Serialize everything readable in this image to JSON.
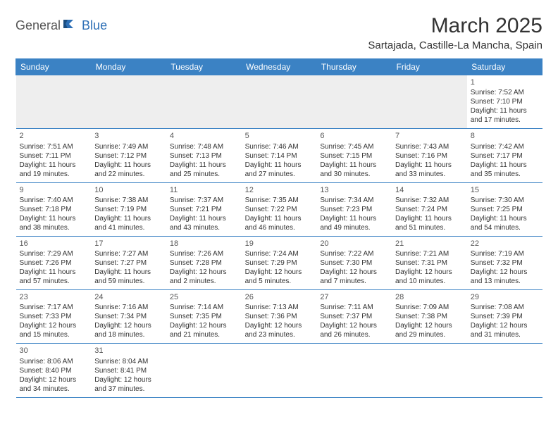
{
  "logo": {
    "part1": "General",
    "part2": "Blue"
  },
  "title": "March 2025",
  "location": "Sartajada, Castille-La Mancha, Spain",
  "colors": {
    "header_bg": "#3b82c4",
    "header_text": "#ffffff",
    "border": "#3b82c4",
    "lead_bg": "#eeeeee",
    "text": "#333333",
    "logo_blue": "#2d6fb6"
  },
  "weekdays": [
    "Sunday",
    "Monday",
    "Tuesday",
    "Wednesday",
    "Thursday",
    "Friday",
    "Saturday"
  ],
  "weeks": [
    [
      {
        "blank": true
      },
      {
        "blank": true
      },
      {
        "blank": true
      },
      {
        "blank": true
      },
      {
        "blank": true
      },
      {
        "blank": true
      },
      {
        "day": "1",
        "sunrise": "Sunrise: 7:52 AM",
        "sunset": "Sunset: 7:10 PM",
        "daylight1": "Daylight: 11 hours",
        "daylight2": "and 17 minutes."
      }
    ],
    [
      {
        "day": "2",
        "sunrise": "Sunrise: 7:51 AM",
        "sunset": "Sunset: 7:11 PM",
        "daylight1": "Daylight: 11 hours",
        "daylight2": "and 19 minutes."
      },
      {
        "day": "3",
        "sunrise": "Sunrise: 7:49 AM",
        "sunset": "Sunset: 7:12 PM",
        "daylight1": "Daylight: 11 hours",
        "daylight2": "and 22 minutes."
      },
      {
        "day": "4",
        "sunrise": "Sunrise: 7:48 AM",
        "sunset": "Sunset: 7:13 PM",
        "daylight1": "Daylight: 11 hours",
        "daylight2": "and 25 minutes."
      },
      {
        "day": "5",
        "sunrise": "Sunrise: 7:46 AM",
        "sunset": "Sunset: 7:14 PM",
        "daylight1": "Daylight: 11 hours",
        "daylight2": "and 27 minutes."
      },
      {
        "day": "6",
        "sunrise": "Sunrise: 7:45 AM",
        "sunset": "Sunset: 7:15 PM",
        "daylight1": "Daylight: 11 hours",
        "daylight2": "and 30 minutes."
      },
      {
        "day": "7",
        "sunrise": "Sunrise: 7:43 AM",
        "sunset": "Sunset: 7:16 PM",
        "daylight1": "Daylight: 11 hours",
        "daylight2": "and 33 minutes."
      },
      {
        "day": "8",
        "sunrise": "Sunrise: 7:42 AM",
        "sunset": "Sunset: 7:17 PM",
        "daylight1": "Daylight: 11 hours",
        "daylight2": "and 35 minutes."
      }
    ],
    [
      {
        "day": "9",
        "sunrise": "Sunrise: 7:40 AM",
        "sunset": "Sunset: 7:18 PM",
        "daylight1": "Daylight: 11 hours",
        "daylight2": "and 38 minutes."
      },
      {
        "day": "10",
        "sunrise": "Sunrise: 7:38 AM",
        "sunset": "Sunset: 7:19 PM",
        "daylight1": "Daylight: 11 hours",
        "daylight2": "and 41 minutes."
      },
      {
        "day": "11",
        "sunrise": "Sunrise: 7:37 AM",
        "sunset": "Sunset: 7:21 PM",
        "daylight1": "Daylight: 11 hours",
        "daylight2": "and 43 minutes."
      },
      {
        "day": "12",
        "sunrise": "Sunrise: 7:35 AM",
        "sunset": "Sunset: 7:22 PM",
        "daylight1": "Daylight: 11 hours",
        "daylight2": "and 46 minutes."
      },
      {
        "day": "13",
        "sunrise": "Sunrise: 7:34 AM",
        "sunset": "Sunset: 7:23 PM",
        "daylight1": "Daylight: 11 hours",
        "daylight2": "and 49 minutes."
      },
      {
        "day": "14",
        "sunrise": "Sunrise: 7:32 AM",
        "sunset": "Sunset: 7:24 PM",
        "daylight1": "Daylight: 11 hours",
        "daylight2": "and 51 minutes."
      },
      {
        "day": "15",
        "sunrise": "Sunrise: 7:30 AM",
        "sunset": "Sunset: 7:25 PM",
        "daylight1": "Daylight: 11 hours",
        "daylight2": "and 54 minutes."
      }
    ],
    [
      {
        "day": "16",
        "sunrise": "Sunrise: 7:29 AM",
        "sunset": "Sunset: 7:26 PM",
        "daylight1": "Daylight: 11 hours",
        "daylight2": "and 57 minutes."
      },
      {
        "day": "17",
        "sunrise": "Sunrise: 7:27 AM",
        "sunset": "Sunset: 7:27 PM",
        "daylight1": "Daylight: 11 hours",
        "daylight2": "and 59 minutes."
      },
      {
        "day": "18",
        "sunrise": "Sunrise: 7:26 AM",
        "sunset": "Sunset: 7:28 PM",
        "daylight1": "Daylight: 12 hours",
        "daylight2": "and 2 minutes."
      },
      {
        "day": "19",
        "sunrise": "Sunrise: 7:24 AM",
        "sunset": "Sunset: 7:29 PM",
        "daylight1": "Daylight: 12 hours",
        "daylight2": "and 5 minutes."
      },
      {
        "day": "20",
        "sunrise": "Sunrise: 7:22 AM",
        "sunset": "Sunset: 7:30 PM",
        "daylight1": "Daylight: 12 hours",
        "daylight2": "and 7 minutes."
      },
      {
        "day": "21",
        "sunrise": "Sunrise: 7:21 AM",
        "sunset": "Sunset: 7:31 PM",
        "daylight1": "Daylight: 12 hours",
        "daylight2": "and 10 minutes."
      },
      {
        "day": "22",
        "sunrise": "Sunrise: 7:19 AM",
        "sunset": "Sunset: 7:32 PM",
        "daylight1": "Daylight: 12 hours",
        "daylight2": "and 13 minutes."
      }
    ],
    [
      {
        "day": "23",
        "sunrise": "Sunrise: 7:17 AM",
        "sunset": "Sunset: 7:33 PM",
        "daylight1": "Daylight: 12 hours",
        "daylight2": "and 15 minutes."
      },
      {
        "day": "24",
        "sunrise": "Sunrise: 7:16 AM",
        "sunset": "Sunset: 7:34 PM",
        "daylight1": "Daylight: 12 hours",
        "daylight2": "and 18 minutes."
      },
      {
        "day": "25",
        "sunrise": "Sunrise: 7:14 AM",
        "sunset": "Sunset: 7:35 PM",
        "daylight1": "Daylight: 12 hours",
        "daylight2": "and 21 minutes."
      },
      {
        "day": "26",
        "sunrise": "Sunrise: 7:13 AM",
        "sunset": "Sunset: 7:36 PM",
        "daylight1": "Daylight: 12 hours",
        "daylight2": "and 23 minutes."
      },
      {
        "day": "27",
        "sunrise": "Sunrise: 7:11 AM",
        "sunset": "Sunset: 7:37 PM",
        "daylight1": "Daylight: 12 hours",
        "daylight2": "and 26 minutes."
      },
      {
        "day": "28",
        "sunrise": "Sunrise: 7:09 AM",
        "sunset": "Sunset: 7:38 PM",
        "daylight1": "Daylight: 12 hours",
        "daylight2": "and 29 minutes."
      },
      {
        "day": "29",
        "sunrise": "Sunrise: 7:08 AM",
        "sunset": "Sunset: 7:39 PM",
        "daylight1": "Daylight: 12 hours",
        "daylight2": "and 31 minutes."
      }
    ],
    [
      {
        "day": "30",
        "sunrise": "Sunrise: 8:06 AM",
        "sunset": "Sunset: 8:40 PM",
        "daylight1": "Daylight: 12 hours",
        "daylight2": "and 34 minutes."
      },
      {
        "day": "31",
        "sunrise": "Sunrise: 8:04 AM",
        "sunset": "Sunset: 8:41 PM",
        "daylight1": "Daylight: 12 hours",
        "daylight2": "and 37 minutes."
      },
      {
        "blank": true
      },
      {
        "blank": true
      },
      {
        "blank": true
      },
      {
        "blank": true
      },
      {
        "blank": true
      }
    ]
  ]
}
